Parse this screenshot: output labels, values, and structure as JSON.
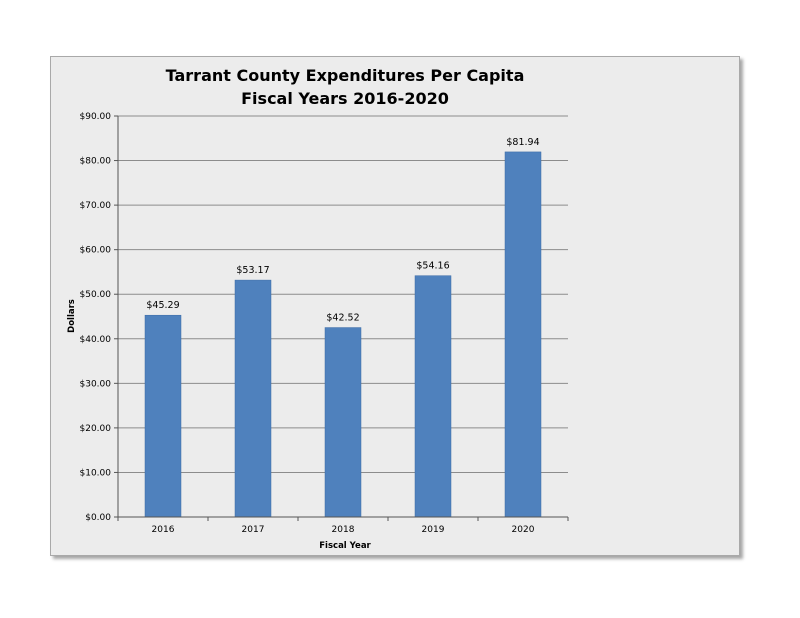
{
  "chart_data": {
    "type": "bar",
    "title": "Tarrant County Expenditures Per Capita",
    "subtitle": "Fiscal Years 2016-2020",
    "xlabel": "Fiscal Year",
    "ylabel": "Dollars",
    "categories": [
      "2016",
      "2017",
      "2018",
      "2019",
      "2020"
    ],
    "values": [
      45.29,
      53.17,
      42.52,
      54.16,
      81.94
    ],
    "data_labels": [
      "$45.29",
      "$53.17",
      "$42.52",
      "$54.16",
      "$81.94"
    ],
    "ylim": [
      0,
      90
    ],
    "yticks": [
      0,
      10,
      20,
      30,
      40,
      50,
      60,
      70,
      80,
      90
    ],
    "ytick_labels": [
      "$0.00",
      "$10.00",
      "$20.00",
      "$30.00",
      "$40.00",
      "$50.00",
      "$60.00",
      "$70.00",
      "$80.00",
      "$90.00"
    ],
    "grid": true,
    "legend": "none",
    "colors": {
      "bar": "#4f81bd",
      "bar_edge": "#3a6aa6",
      "gridline": "#8c8c8c",
      "background": "#ececec"
    }
  }
}
